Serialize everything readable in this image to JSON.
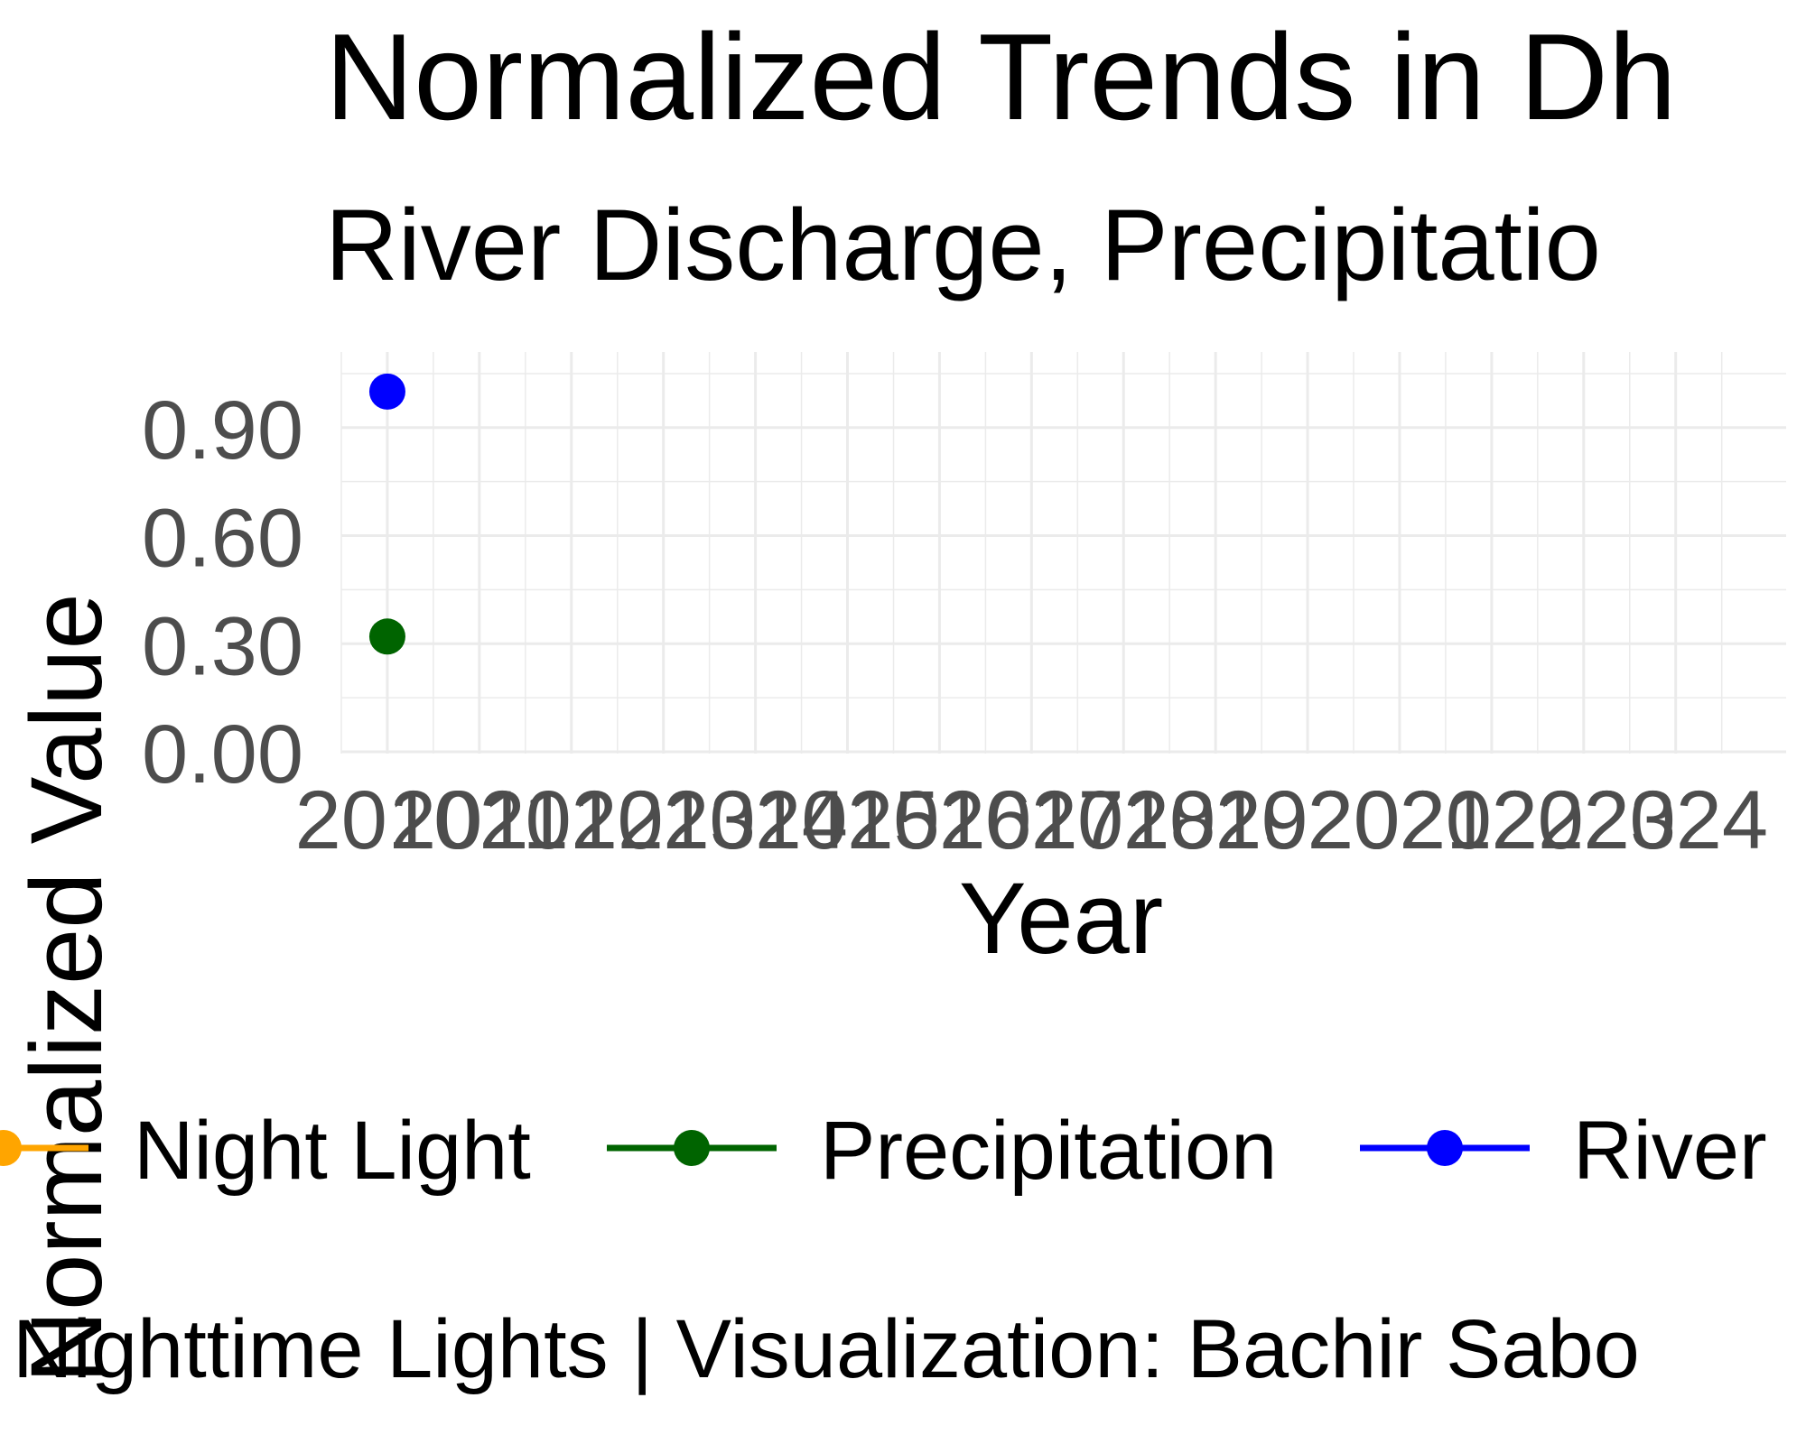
{
  "chart_data": {
    "type": "line",
    "title": "Normalized Trends in Dh",
    "subtitle": "River Discharge, Precipitatio",
    "xlabel": "Year",
    "ylabel": "Normalized Value",
    "x_ticks": [
      "2010",
      "2011",
      "2012",
      "2013",
      "2014",
      "2015",
      "2016",
      "2017",
      "2018",
      "2019",
      "2020",
      "2021",
      "2022",
      "2023",
      "2024"
    ],
    "y_ticks": [
      "0.00",
      "0.30",
      "0.60",
      "0.90"
    ],
    "xlim": [
      2009.5,
      2025.2
    ],
    "ylim": [
      -0.005,
      1.11
    ],
    "grid": true,
    "legend_position": "bottom",
    "series": [
      {
        "name": "Night Light",
        "color": "#FFA500",
        "points": []
      },
      {
        "name": "Precipitation",
        "color": "#006400",
        "points": [
          {
            "x": 2010,
            "y": 0.32
          }
        ]
      },
      {
        "name": "River",
        "color": "#0000FF",
        "points": [
          {
            "x": 2010,
            "y": 1.0
          }
        ]
      }
    ],
    "caption": "Nighttime Lights | Visualization: Bachir Sabo"
  }
}
